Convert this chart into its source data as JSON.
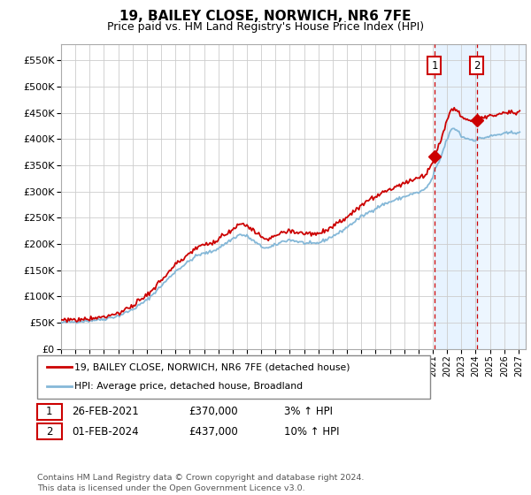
{
  "title": "19, BAILEY CLOSE, NORWICH, NR6 7FE",
  "subtitle": "Price paid vs. HM Land Registry's House Price Index (HPI)",
  "legend_line1": "19, BAILEY CLOSE, NORWICH, NR6 7FE (detached house)",
  "legend_line2": "HPI: Average price, detached house, Broadland",
  "annotation1_label": "1",
  "annotation1_date": "26-FEB-2021",
  "annotation1_price": "£370,000",
  "annotation1_hpi": "3% ↑ HPI",
  "annotation2_label": "2",
  "annotation2_date": "01-FEB-2024",
  "annotation2_price": "£437,000",
  "annotation2_hpi": "10% ↑ HPI",
  "footer": "Contains HM Land Registry data © Crown copyright and database right 2024.\nThis data is licensed under the Open Government Licence v3.0.",
  "ylim": [
    0,
    580000
  ],
  "xlim_start": 1995.0,
  "xlim_end": 2027.0,
  "hpi_color": "#85b8d8",
  "price_color": "#cc0000",
  "background_color": "#ffffff",
  "grid_color": "#cccccc",
  "shade_color": "#ddeeff",
  "purchase1_year": 2021.12,
  "purchase1_price": 370000,
  "purchase2_year": 2024.08,
  "purchase2_price": 437000
}
